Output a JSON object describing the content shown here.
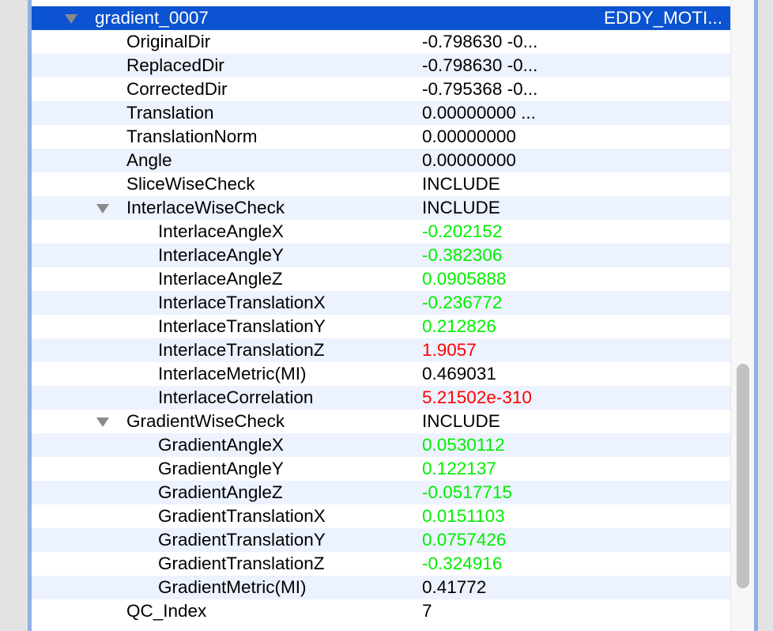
{
  "rows": [
    {
      "name": "gradient_0007",
      "value": "EDDY_MOTI...",
      "level": 0,
      "expanded": true,
      "selected": true
    },
    {
      "name": "OriginalDir",
      "value": "-0.798630 -0...",
      "level": 1
    },
    {
      "name": "ReplacedDir",
      "value": "-0.798630 -0...",
      "level": 1
    },
    {
      "name": "CorrectedDir",
      "value": "-0.795368 -0...",
      "level": 1
    },
    {
      "name": "Translation",
      "value": "0.00000000 ...",
      "level": 1
    },
    {
      "name": "TranslationNorm",
      "value": "0.00000000",
      "level": 1
    },
    {
      "name": "Angle",
      "value": "0.00000000",
      "level": 1
    },
    {
      "name": "SliceWiseCheck",
      "value": "INCLUDE",
      "level": 1
    },
    {
      "name": "InterlaceWiseCheck",
      "value": "INCLUDE",
      "level": 1,
      "expanded": true
    },
    {
      "name": "InterlaceAngleX",
      "value": "-0.202152",
      "level": 2,
      "color": "green"
    },
    {
      "name": "InterlaceAngleY",
      "value": "-0.382306",
      "level": 2,
      "color": "green"
    },
    {
      "name": "InterlaceAngleZ",
      "value": "0.0905888",
      "level": 2,
      "color": "green"
    },
    {
      "name": "InterlaceTranslationX",
      "value": "-0.236772",
      "level": 2,
      "color": "green"
    },
    {
      "name": "InterlaceTranslationY",
      "value": "0.212826",
      "level": 2,
      "color": "green"
    },
    {
      "name": "InterlaceTranslationZ",
      "value": "1.9057",
      "level": 2,
      "color": "red"
    },
    {
      "name": "InterlaceMetric(MI)",
      "value": "0.469031",
      "level": 2
    },
    {
      "name": "InterlaceCorrelation",
      "value": "5.21502e-310",
      "level": 2,
      "color": "red"
    },
    {
      "name": "GradientWiseCheck",
      "value": "INCLUDE",
      "level": 1,
      "expanded": true
    },
    {
      "name": "GradientAngleX",
      "value": "0.0530112",
      "level": 2,
      "color": "green"
    },
    {
      "name": "GradientAngleY",
      "value": "0.122137",
      "level": 2,
      "color": "green"
    },
    {
      "name": "GradientAngleZ",
      "value": "-0.0517715",
      "level": 2,
      "color": "green"
    },
    {
      "name": "GradientTranslationX",
      "value": "0.0151103",
      "level": 2,
      "color": "green"
    },
    {
      "name": "GradientTranslationY",
      "value": "0.0757426",
      "level": 2,
      "color": "green"
    },
    {
      "name": "GradientTranslationZ",
      "value": "-0.324916",
      "level": 2,
      "color": "green"
    },
    {
      "name": "GradientMetric(MI)",
      "value": "0.41772",
      "level": 2
    },
    {
      "name": "QC_Index",
      "value": "7",
      "level": 1
    }
  ],
  "colors": {
    "selection": "#0b53d0",
    "stripe": "#ecf2fe",
    "pass": "#00ee00",
    "fail": "#ff0000"
  }
}
